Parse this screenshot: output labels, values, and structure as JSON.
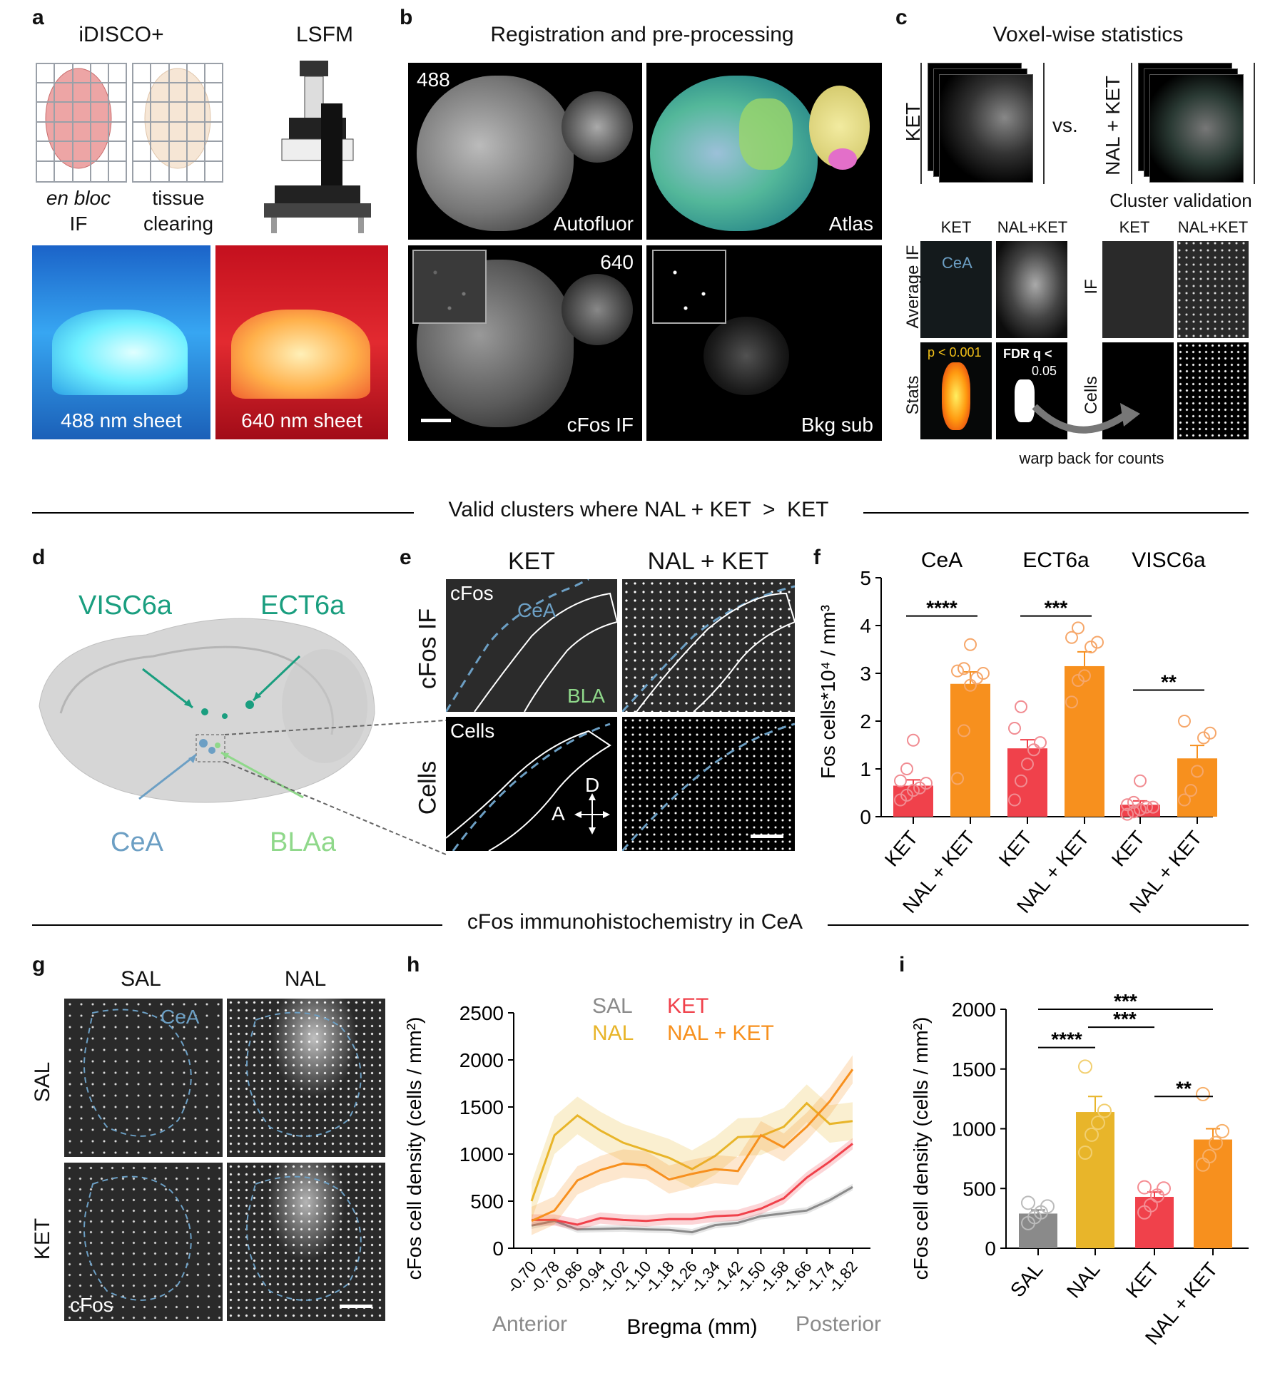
{
  "panels": {
    "a": {
      "letter": "a",
      "title_left": "iDISCO+",
      "title_right": "LSFM",
      "cap1_l1": "en bloc",
      "cap1_l2": "IF",
      "cap2_l1": "tissue",
      "cap2_l2": "clearing",
      "img1_label": "488 nm sheet",
      "img2_label": "640 nm sheet"
    },
    "b": {
      "letter": "b",
      "title": "Registration and pre-processing",
      "tl": "488",
      "tl_label": "Autofluor",
      "tr_label": "Atlas",
      "bl_num": "640",
      "bl_label": "cFos IF",
      "br_label": "Bkg sub"
    },
    "c": {
      "letter": "c",
      "title": "Voxel-wise statistics",
      "ket": "KET",
      "vs": "vs.",
      "nalket": "NAL + KET",
      "cluster": "Cluster validation",
      "sub_ket": "KET",
      "sub_nalket": "NAL+KET",
      "row_avg": "Average IF",
      "row_stats": "Stats",
      "cea": "CeA",
      "p": "p < 0.001",
      "fdr1": "FDR q <",
      "fdr2": "0.05",
      "r_ket": "KET",
      "r_nalket": "NAL+KET",
      "row_if": "IF",
      "row_cells": "Cells",
      "warp": "warp back for counts"
    },
    "sep1": "Valid clusters where NAL + KET  >  KET",
    "d": {
      "letter": "d",
      "visc": "VISC6a",
      "ect": "ECT6a",
      "cea": "CeA",
      "bla": "BLAa"
    },
    "e": {
      "letter": "e",
      "col1": "KET",
      "col2": "NAL + KET",
      "row1": "cFos IF",
      "row2": "Cells",
      "cfos": "cFos",
      "cea": "CeA",
      "bla": "BLA",
      "cells": "Cells",
      "dir_d": "D",
      "dir_a": "A"
    },
    "sep2": "cFos immunohistochemistry in CeA",
    "g": {
      "letter": "g",
      "col1": "SAL",
      "col2": "NAL",
      "row1": "SAL",
      "row2": "KET",
      "cea": "CeA",
      "cfos": "cFos"
    },
    "h": {
      "letter": "h",
      "anterior": "Anterior",
      "posterior": "Posterior"
    },
    "i": {
      "letter": "i"
    }
  },
  "colors": {
    "ket": "#f0414b",
    "nalket": "#f7901e",
    "nal": "#e8b52a",
    "sal": "#8a8a8a",
    "teal": "#1a9e7f",
    "ceablue": "#6c9fc4",
    "blagreen": "#8fd88a"
  },
  "chart_data": [
    {
      "id": "f",
      "type": "bar",
      "ylabel": "Fos cells*10⁴ / mm³",
      "ylim": [
        0,
        5
      ],
      "yticks": [
        "0",
        "1",
        "2",
        "3",
        "4",
        "5"
      ],
      "groups": [
        "CeA",
        "ECT6a",
        "VISC6a"
      ],
      "categories": [
        "KET",
        "NAL + KET",
        "KET",
        "NAL + KET",
        "KET",
        "NAL + KET"
      ],
      "values": [
        0.65,
        2.78,
        1.43,
        3.15,
        0.25,
        1.22
      ],
      "sem": [
        0.12,
        0.25,
        0.18,
        0.3,
        0.08,
        0.27
      ],
      "points": [
        [
          0.35,
          0.45,
          0.55,
          0.6,
          0.7,
          0.75,
          1.0,
          1.6
        ],
        [
          0.8,
          1.8,
          2.75,
          2.9,
          3.0,
          3.05,
          3.1,
          3.6
        ],
        [
          0.35,
          0.75,
          1.1,
          1.4,
          1.55,
          1.85,
          2.3
        ],
        [
          2.4,
          2.85,
          2.95,
          3.55,
          3.65,
          3.75,
          3.95
        ],
        [
          0.05,
          0.1,
          0.15,
          0.2,
          0.2,
          0.25,
          0.3,
          0.75
        ],
        [
          0.35,
          0.55,
          0.95,
          1.65,
          1.75,
          2.0
        ]
      ],
      "significance": [
        "****",
        "***",
        "**"
      ]
    },
    {
      "id": "h",
      "type": "line",
      "xlabel": "Bregma (mm)",
      "ylabel": "cFos cell density (cells / mm²)",
      "ylim": [
        0,
        2500
      ],
      "yticks": [
        "0",
        "500",
        "1000",
        "1500",
        "2000",
        "2500"
      ],
      "x": [
        "-0.70",
        "-0.78",
        "-0.86",
        "-0.94",
        "-1.02",
        "-1.10",
        "-1.18",
        "-1.26",
        "-1.34",
        "-1.42",
        "-1.50",
        "-1.58",
        "-1.66",
        "-1.74",
        "-1.82"
      ],
      "series": [
        {
          "name": "SAL",
          "values": [
            240,
            290,
            200,
            205,
            210,
            200,
            195,
            170,
            245,
            270,
            340,
            370,
            400,
            510,
            650
          ],
          "band": 35
        },
        {
          "name": "KET",
          "values": [
            300,
            300,
            250,
            320,
            300,
            290,
            310,
            310,
            340,
            350,
            420,
            530,
            750,
            920,
            1110
          ],
          "band": 60
        },
        {
          "name": "NAL",
          "values": [
            500,
            1200,
            1410,
            1250,
            1120,
            1040,
            960,
            840,
            980,
            1180,
            1190,
            1290,
            1540,
            1320,
            1350
          ],
          "band": 200
        },
        {
          "name": "NAL + KET",
          "values": [
            290,
            400,
            720,
            830,
            900,
            880,
            730,
            790,
            840,
            820,
            1200,
            1070,
            1290,
            1560,
            1900
          ],
          "band": 150
        }
      ]
    },
    {
      "id": "i",
      "type": "bar",
      "ylabel": "cFos cell density (cells / mm²)",
      "ylim": [
        0,
        2000
      ],
      "yticks": [
        "0",
        "500",
        "1000",
        "1500",
        "2000"
      ],
      "categories": [
        "SAL",
        "NAL",
        "KET",
        "NAL + KET"
      ],
      "values": [
        290,
        1140,
        430,
        910
      ],
      "sem": [
        30,
        130,
        40,
        90
      ],
      "points": [
        [
          210,
          260,
          300,
          350,
          380
        ],
        [
          800,
          950,
          1050,
          1150,
          1520
        ],
        [
          300,
          360,
          440,
          500,
          510
        ],
        [
          700,
          770,
          880,
          980,
          1290
        ]
      ],
      "significance": [
        "****",
        "***",
        "***",
        "**"
      ]
    }
  ]
}
